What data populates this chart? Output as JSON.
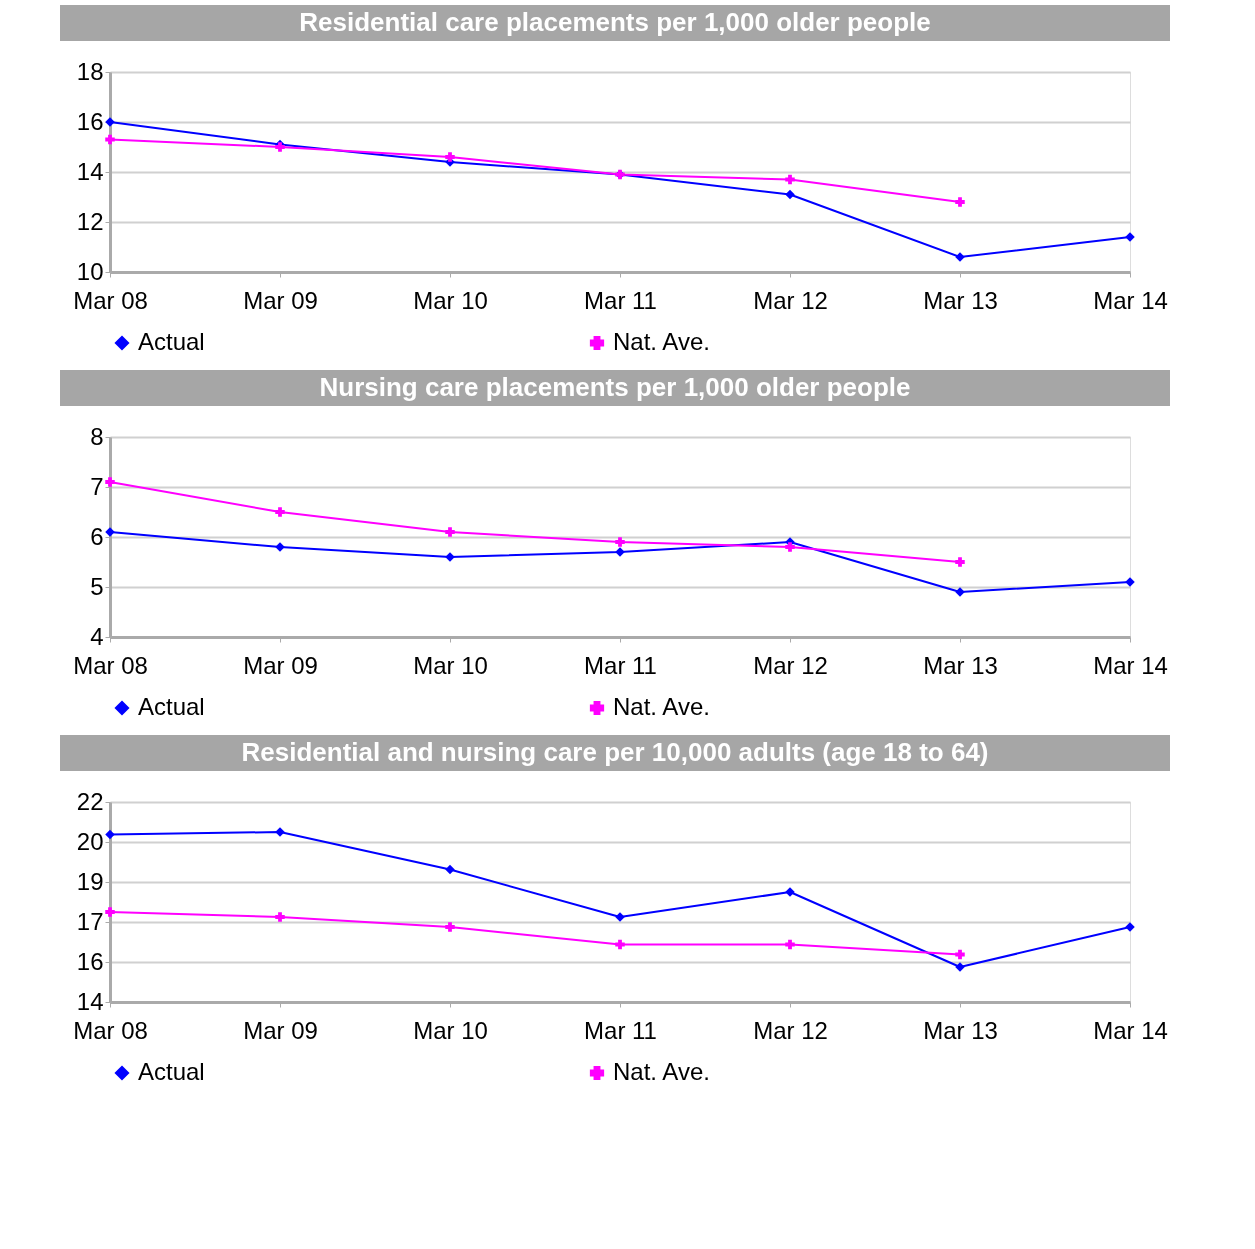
{
  "chart_data": [
    {
      "type": "line",
      "title": "Residential care placements per 1,000 older people",
      "categories": [
        "Mar 08",
        "Mar 09",
        "Mar 10",
        "Mar 11",
        "Mar 12",
        "Mar 13",
        "Mar 14"
      ],
      "series": [
        {
          "name": "Actual",
          "color": "#0000ff",
          "marker": "diamond",
          "values": [
            16.0,
            15.1,
            14.4,
            13.9,
            13.1,
            10.6,
            11.4
          ]
        },
        {
          "name": "Nat. Ave.",
          "color": "#ff00ff",
          "marker": "cross",
          "values": [
            15.3,
            15.0,
            14.6,
            13.9,
            13.7,
            12.8,
            null
          ]
        }
      ],
      "ylim": [
        10,
        18
      ],
      "yticks": [
        10,
        12,
        14,
        16,
        18
      ],
      "grid": "y",
      "legend": "bottom"
    },
    {
      "type": "line",
      "title": "Nursing care placements per 1,000 older people",
      "categories": [
        "Mar 08",
        "Mar 09",
        "Mar 10",
        "Mar 11",
        "Mar 12",
        "Mar 13",
        "Mar 14"
      ],
      "series": [
        {
          "name": "Actual",
          "color": "#0000ff",
          "marker": "diamond",
          "values": [
            6.1,
            5.8,
            5.6,
            5.7,
            5.9,
            4.9,
            5.1
          ]
        },
        {
          "name": "Nat. Ave.",
          "color": "#ff00ff",
          "marker": "cross",
          "values": [
            7.1,
            6.5,
            6.1,
            5.9,
            5.8,
            5.5,
            null
          ]
        }
      ],
      "ylim": [
        4,
        8
      ],
      "yticks": [
        4,
        5,
        6,
        7,
        8
      ],
      "grid": "y",
      "legend": "bottom"
    },
    {
      "type": "line",
      "title": "Residential and nursing care per 10,000 adults (age 18 to 64)",
      "categories": [
        "Mar 08",
        "Mar 09",
        "Mar 10",
        "Mar 11",
        "Mar 12",
        "Mar 13",
        "Mar 14"
      ],
      "series": [
        {
          "name": "Actual",
          "color": "#0000ff",
          "marker": "diamond",
          "values": [
            20.7,
            20.8,
            19.3,
            17.4,
            18.4,
            15.4,
            17.0
          ]
        },
        {
          "name": "Nat. Ave.",
          "color": "#ff00ff",
          "marker": "cross",
          "values": [
            17.6,
            17.4,
            17.0,
            16.3,
            16.3,
            15.9,
            null
          ]
        }
      ],
      "ylim": [
        14,
        22
      ],
      "yticks": [
        14,
        {
          "value": 15.6,
          "label": "16"
        },
        {
          "value": 17.2,
          "label": "17"
        },
        {
          "value": 18.8,
          "label": "19"
        },
        {
          "value": 20.4,
          "label": "20"
        },
        22
      ],
      "grid": "y",
      "legend": "bottom"
    }
  ]
}
